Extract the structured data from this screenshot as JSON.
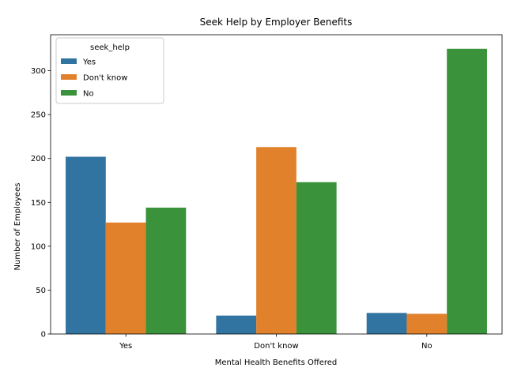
{
  "chart_data": {
    "type": "bar",
    "title": "Seek Help by Employer Benefits",
    "xlabel": "Mental Health Benefits Offered",
    "ylabel": "Number of Employees",
    "categories": [
      "Yes",
      "Don't know",
      "No"
    ],
    "series": [
      {
        "name": "Yes",
        "values": [
          202,
          21,
          24
        ],
        "color": "#3274a1"
      },
      {
        "name": "Don't know",
        "values": [
          127,
          213,
          23
        ],
        "color": "#e1812c"
      },
      {
        "name": "No",
        "values": [
          144,
          173,
          325
        ],
        "color": "#3a923a"
      }
    ],
    "legend_title": "seek_help",
    "legend_position": "top-left",
    "ylim": [
      0,
      341
    ],
    "yticks": [
      0,
      50,
      100,
      150,
      200,
      250,
      300
    ],
    "grid": false
  }
}
